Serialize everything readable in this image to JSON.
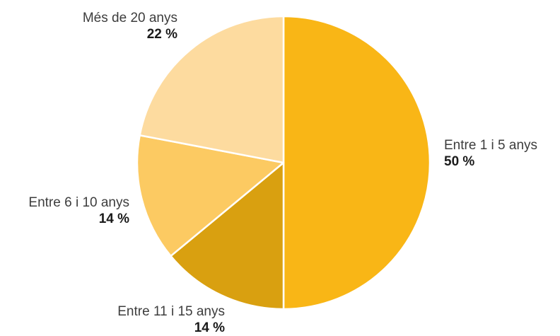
{
  "chart_data": {
    "type": "pie",
    "title": "",
    "slices": [
      {
        "label": "Entre 1 i 5 anys",
        "value": 50,
        "value_label": "50 %",
        "color": "#F9B616"
      },
      {
        "label": "Entre 11 i 15 anys",
        "value": 14,
        "value_label": "14 %",
        "color": "#D9A010"
      },
      {
        "label": "Entre 6 i 10 anys",
        "value": 14,
        "value_label": "14 %",
        "color": "#FCCA62"
      },
      {
        "label": "Més de 20 anys",
        "value": 22,
        "value_label": "22 %",
        "color": "#FDDB9F"
      }
    ],
    "start_angle": "12 o'clock",
    "direction": "clockwise",
    "separator_color": "#ffffff"
  }
}
